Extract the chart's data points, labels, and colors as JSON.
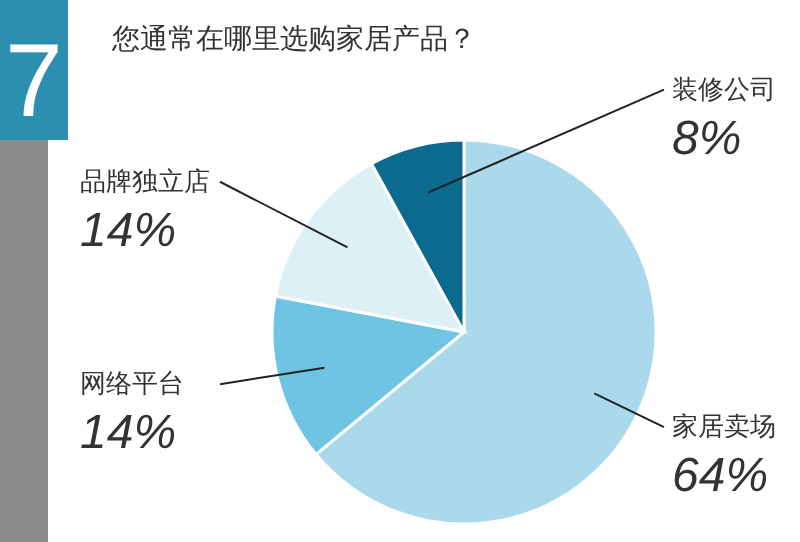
{
  "chart_data": {
    "type": "pie",
    "title": "您通常在哪里选购家居产品？",
    "annotations": [
      "7"
    ],
    "categories": [
      "家居卖场",
      "网络平台",
      "品牌独立店",
      "装修公司"
    ],
    "values": [
      64,
      14,
      14,
      8
    ],
    "colors": [
      "#a9d9ea",
      "#6ec4e2",
      "#dcf0f6",
      "#0b6b8f"
    ],
    "value_labels": [
      "64%",
      "14%",
      "14%",
      "8%"
    ]
  }
}
